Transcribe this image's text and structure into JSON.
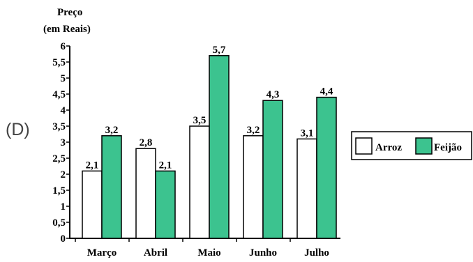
{
  "option_label": "(D)",
  "chart_data": {
    "type": "bar",
    "ylabel_line1": "Preço",
    "ylabel_line2": "(em Reais)",
    "categories": [
      "Março",
      "Abril",
      "Maio",
      "Junho",
      "Julho"
    ],
    "series": [
      {
        "name": "Arroz",
        "values": [
          2.1,
          2.8,
          3.5,
          3.2,
          3.1
        ],
        "value_labels": [
          "2,1",
          "2,8",
          "3,5",
          "3,2",
          "3,1"
        ],
        "color": "#ffffff"
      },
      {
        "name": "Feijão",
        "values": [
          3.2,
          2.1,
          5.7,
          4.3,
          4.4
        ],
        "value_labels": [
          "3,2",
          "2,1",
          "5,7",
          "4,3",
          "4,4"
        ],
        "color": "#3cc38f"
      }
    ],
    "yticks": [
      0,
      0.5,
      1,
      1.5,
      2,
      2.5,
      3,
      3.5,
      4,
      4.5,
      5,
      5.5,
      6
    ],
    "ytick_labels": [
      "0",
      "0,5",
      "1",
      "1,5",
      "2",
      "2,5",
      "3",
      "3,5",
      "4",
      "4,5",
      "5",
      "5,5",
      "6"
    ],
    "ylim": [
      0,
      6
    ],
    "legend_position": "right",
    "grid": false
  }
}
